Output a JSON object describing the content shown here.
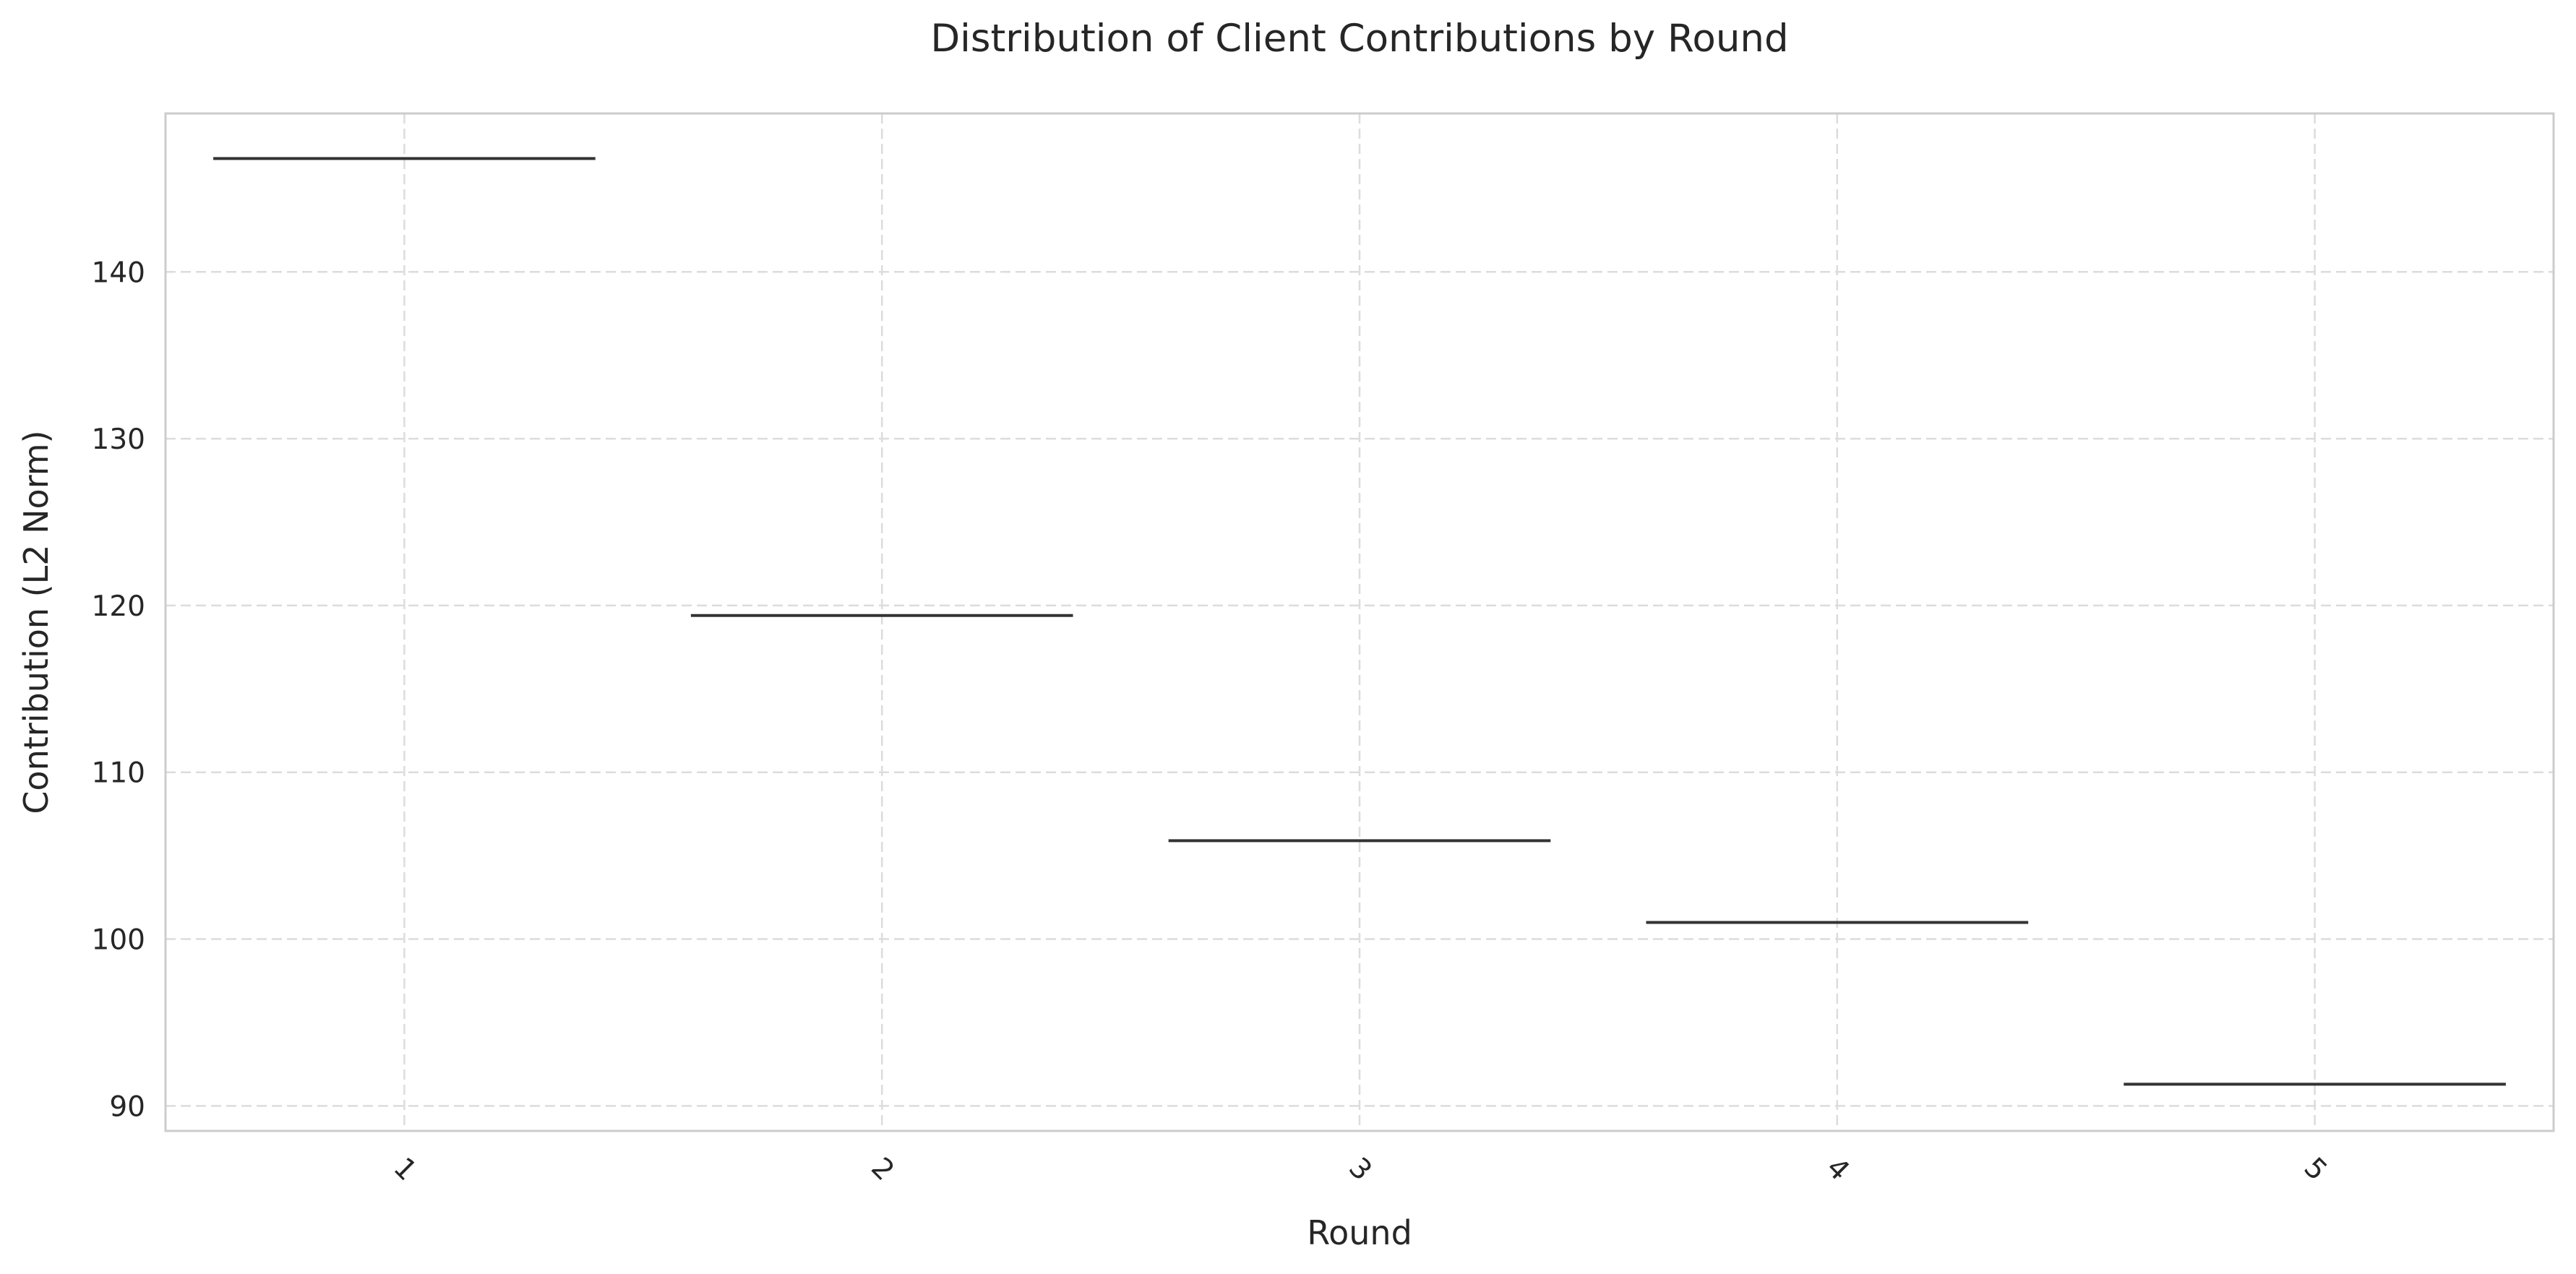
{
  "chart_data": {
    "type": "box",
    "title": "Distribution of Client Contributions by Round",
    "xlabel": "Round",
    "ylabel": "Contribution (L2 Norm)",
    "categories": [
      "1",
      "2",
      "3",
      "4",
      "5"
    ],
    "values": [
      146.8,
      119.4,
      105.9,
      101.0,
      91.3
    ],
    "y_ticks": [
      90,
      100,
      110,
      120,
      130,
      140
    ],
    "ylim": [
      88.5,
      149.5
    ],
    "grid": true,
    "x_tick_rotation": 45
  }
}
